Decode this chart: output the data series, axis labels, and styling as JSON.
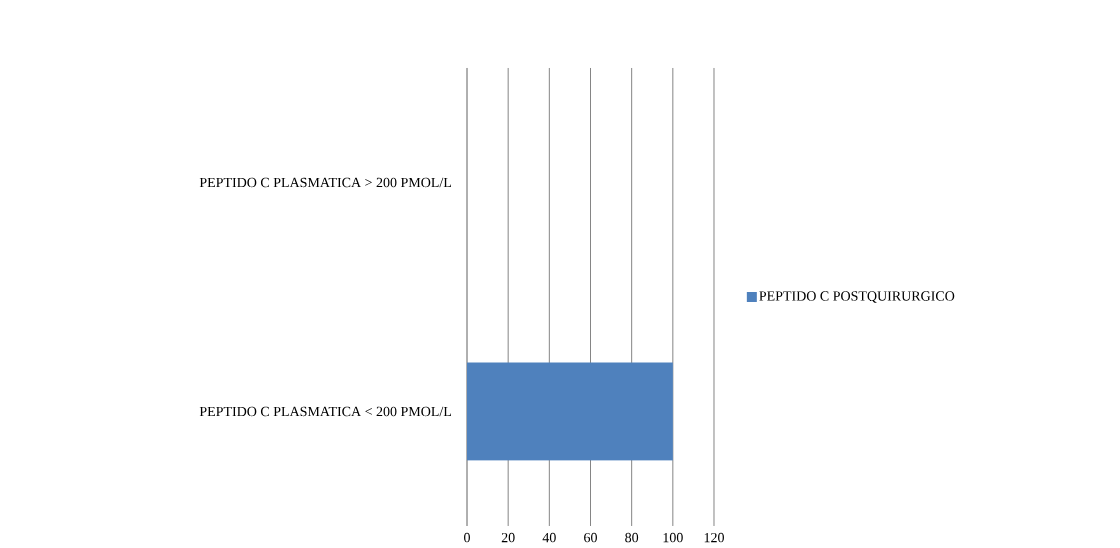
{
  "chart_data": {
    "type": "bar",
    "orientation": "horizontal",
    "categories": [
      "PEPTIDO C PLASMATICA > 200 PMOL/L",
      "PEPTIDO C PLASMATICA < 200 PMOL/L"
    ],
    "series": [
      {
        "name": "PEPTIDO C POSTQUIRURGICO",
        "color": "#4f81bd",
        "values": [
          0,
          100
        ]
      }
    ],
    "xlim": [
      0,
      120
    ],
    "xticks": [
      0,
      20,
      40,
      60,
      80,
      100,
      120
    ],
    "grid": "x",
    "legend": "right"
  }
}
